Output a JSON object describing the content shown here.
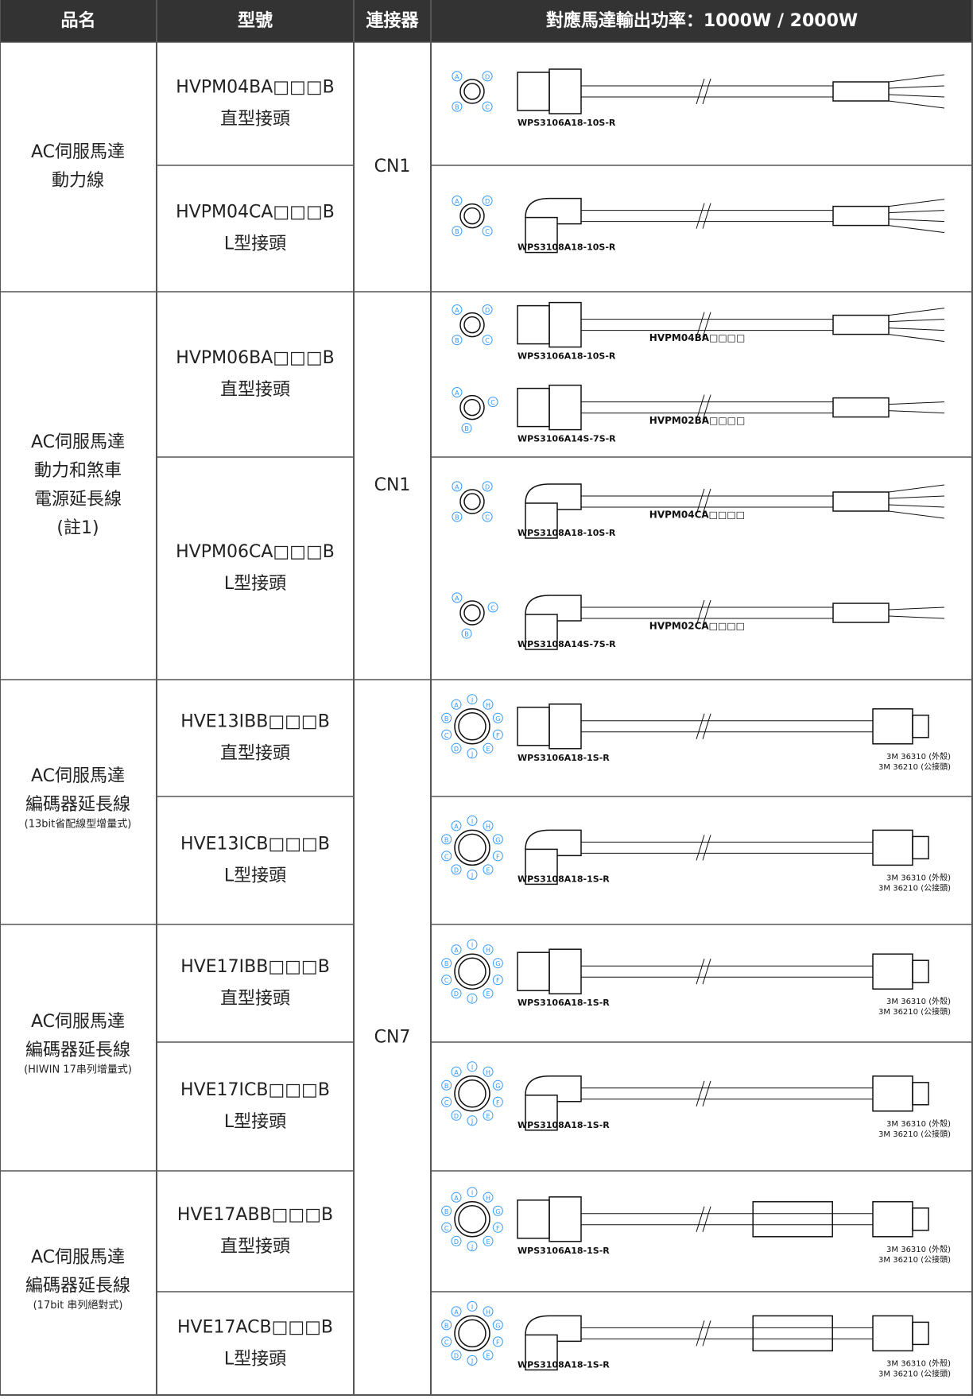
{
  "header": [
    "品名",
    "型號",
    "連接器",
    "對應馬達輸出功率：1000W / 2000W"
  ],
  "groups": [
    {
      "name": [
        "AC伺服馬達",
        "動力線"
      ],
      "connector": "CN1",
      "rows": [
        {
          "model": "HVPM04BA□□□B",
          "kind": "直型接頭",
          "diagrams": [
            {
              "pins": [
                "A",
                "D",
                "C",
                "B"
              ],
              "plug": "WPS3106A18-10S-R"
            }
          ]
        },
        {
          "model": "HVPM04CA□□□B",
          "kind": "L型接頭",
          "diagrams": [
            {
              "pins": [
                "A",
                "D",
                "C",
                "B"
              ],
              "plug": "WPS3108A18-10S-R"
            }
          ]
        }
      ]
    },
    {
      "name": [
        "AC伺服馬達",
        "動力和煞車",
        "電源延長線",
        "(註1)"
      ],
      "connector": "CN1",
      "rows": [
        {
          "model": "HVPM06BA□□□B",
          "kind": "直型接頭",
          "diagrams": [
            {
              "pins": [
                "A",
                "D",
                "C",
                "B"
              ],
              "plug": "WPS3106A18-10S-R",
              "cable": "HVPM04BA□□□□"
            },
            {
              "pins": [
                "A",
                "C",
                "B"
              ],
              "plug": "WPS3106A14S-7S-R",
              "cable": "HVPM02BA□□□□"
            }
          ]
        },
        {
          "model": "HVPM06CA□□□B",
          "kind": "L型接頭",
          "diagrams": [
            {
              "pins": [
                "A",
                "D",
                "C",
                "B"
              ],
              "plug": "WPS3108A18-10S-R",
              "cable": "HVPM04CA□□□□"
            },
            {
              "pins": [
                "A",
                "C",
                "B"
              ],
              "plug": "WPS3108A14S-7S-R",
              "cable": "HVPM02CA□□□□"
            }
          ]
        }
      ]
    },
    {
      "name": [
        "AC伺服馬達",
        "編碼器延長線"
      ],
      "note": "(13bit省配線型增量式)",
      "connector": "CN7",
      "rows": [
        {
          "model": "HVE13IBB□□□B",
          "kind": "直型接頭",
          "diagrams": [
            {
              "pins": [
                "I",
                "H",
                "G",
                "F",
                "E",
                "J",
                "D",
                "C",
                "B",
                "A"
              ],
              "plug": "WPS3106A18-1S-R",
              "ends": [
                "3M 36310 (外殼)",
                "3M 36210 (公接頭)"
              ]
            }
          ]
        },
        {
          "model": "HVE13ICB□□□B",
          "kind": "L型接頭",
          "diagrams": [
            {
              "pins": [
                "I",
                "H",
                "G",
                "F",
                "E",
                "J",
                "D",
                "C",
                "B",
                "A"
              ],
              "plug": "WPS3108A18-1S-R",
              "ends": [
                "3M 36310 (外殼)",
                "3M 36210 (公接頭)"
              ]
            }
          ]
        }
      ]
    },
    {
      "name": [
        "AC伺服馬達",
        "編碼器延長線"
      ],
      "note": "(HIWIN 17串列增量式)",
      "rows": [
        {
          "model": "HVE17IBB□□□B",
          "kind": "直型接頭",
          "diagrams": [
            {
              "pins": [
                "I",
                "H",
                "G",
                "F",
                "E",
                "J",
                "D",
                "C",
                "B",
                "A"
              ],
              "plug": "WPS3106A18-1S-R",
              "ends": [
                "3M 36310 (外殼)",
                "3M 36210 (公接頭)"
              ]
            }
          ]
        },
        {
          "model": "HVE17ICB□□□B",
          "kind": "L型接頭",
          "diagrams": [
            {
              "pins": [
                "I",
                "H",
                "G",
                "F",
                "E",
                "J",
                "D",
                "C",
                "B",
                "A"
              ],
              "plug": "WPS3108A18-1S-R",
              "ends": [
                "3M 36310 (外殼)",
                "3M 36210 (公接頭)"
              ]
            }
          ]
        }
      ]
    },
    {
      "name": [
        "AC伺服馬達",
        "編碼器延長線"
      ],
      "note": "(17bit 串列絕對式)",
      "rows": [
        {
          "model": "HVE17ABB□□□B",
          "kind": "直型接頭",
          "diagrams": [
            {
              "pins": [
                "I",
                "H",
                "G",
                "F",
                "E",
                "J",
                "D",
                "C",
                "B",
                "A"
              ],
              "plug": "WPS3106A18-1S-R",
              "ends": [
                "3M 36310 (外殼)",
                "3M 36210 (公接頭)"
              ]
            }
          ]
        },
        {
          "model": "HVE17ACB□□□B",
          "kind": "L型接頭",
          "diagrams": [
            {
              "pins": [
                "I",
                "H",
                "G",
                "F",
                "E",
                "J",
                "D",
                "C",
                "B",
                "A"
              ],
              "plug": "WPS3108A18-1S-R",
              "ends": [
                "3M 36310 (外殼)",
                "3M 36210 (公接頭)"
              ]
            }
          ]
        }
      ]
    }
  ]
}
